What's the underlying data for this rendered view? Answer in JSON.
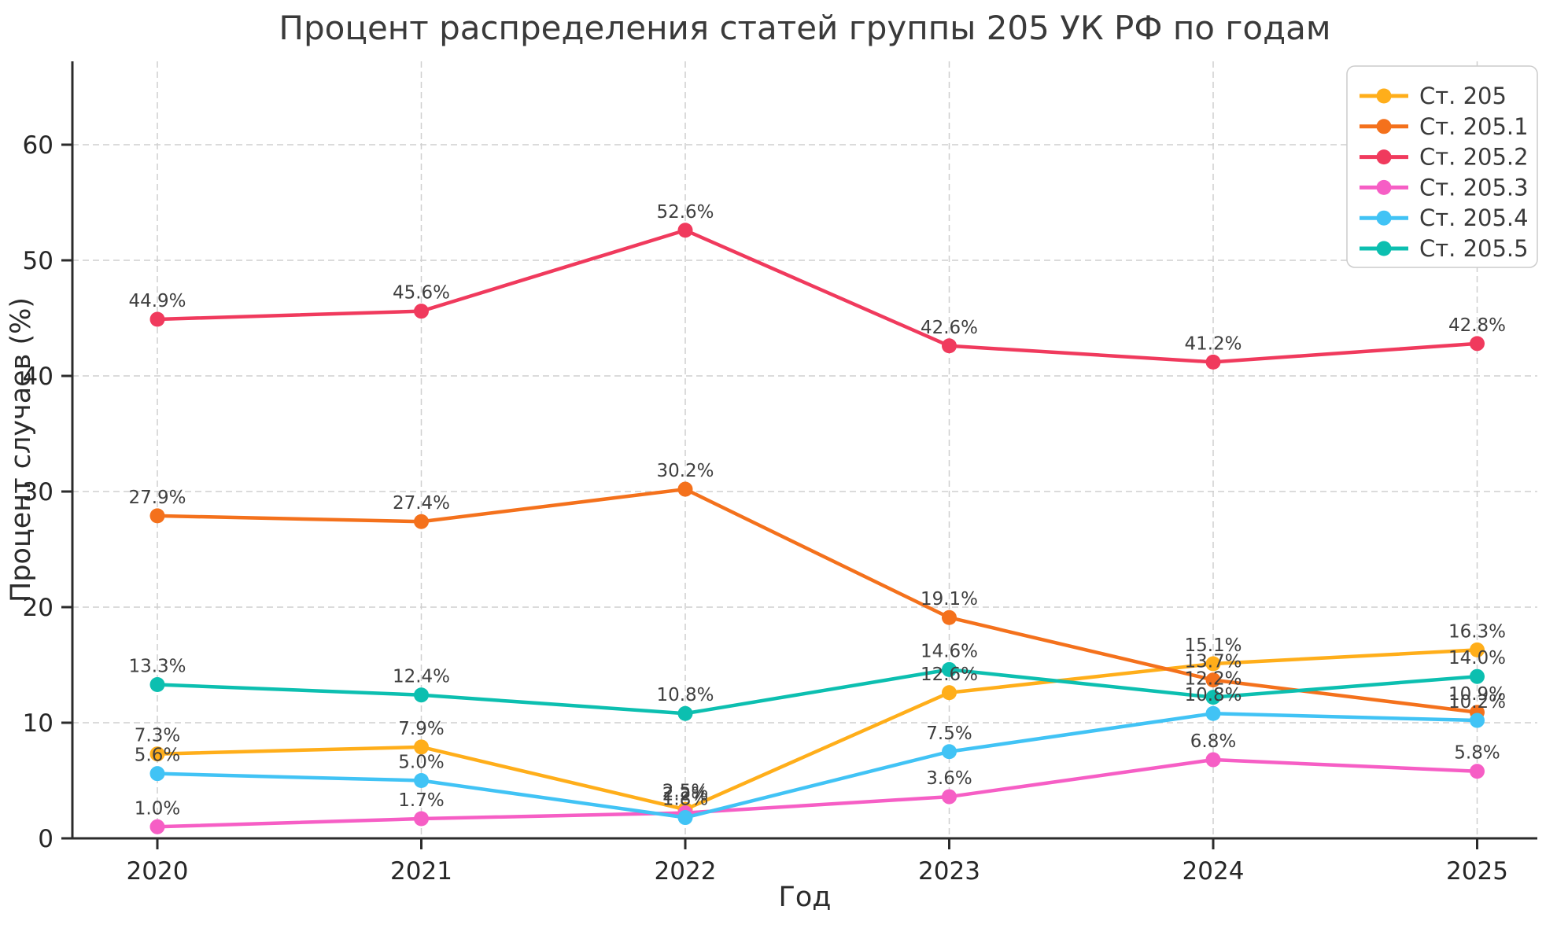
{
  "chart_data": {
    "type": "line",
    "title": "Процент распределения статей группы 205 УК РФ по годам",
    "xlabel": "Год",
    "ylabel": "Процент случаев (%)",
    "categories": [
      "2020",
      "2021",
      "2022",
      "2023",
      "2024",
      "2025"
    ],
    "yticks": [
      "0",
      "10",
      "20",
      "30",
      "40",
      "50",
      "60"
    ],
    "ylim": [
      0,
      67
    ],
    "grid": true,
    "legend_position": "upper right",
    "series": [
      {
        "name": "Ст. 205",
        "color": "#ffae1a",
        "values": [
          7.3,
          7.9,
          2.5,
          12.6,
          15.1,
          16.3
        ],
        "point_labels": [
          "7.3%",
          "7.9%",
          "2.5%",
          "12.6%",
          "15.1%",
          "16.3%"
        ]
      },
      {
        "name": "Ст. 205.1",
        "color": "#f4711c",
        "values": [
          27.9,
          27.4,
          30.2,
          19.1,
          13.7,
          10.9
        ],
        "point_labels": [
          "27.9%",
          "27.4%",
          "30.2%",
          "19.1%",
          "13.7%",
          "10.9%"
        ]
      },
      {
        "name": "Ст. 205.2",
        "color": "#f03a5d",
        "values": [
          44.9,
          45.6,
          52.6,
          42.6,
          41.2,
          42.8
        ],
        "point_labels": [
          "44.9%",
          "45.6%",
          "52.6%",
          "42.6%",
          "41.2%",
          "42.8%"
        ]
      },
      {
        "name": "Ст. 205.3",
        "color": "#f65ec5",
        "values": [
          1.0,
          1.7,
          2.2,
          3.6,
          6.8,
          5.8
        ],
        "point_labels": [
          "1.0%",
          "1.7%",
          "2.2%",
          "3.6%",
          "6.8%",
          "5.8%"
        ]
      },
      {
        "name": "Ст. 205.4",
        "color": "#41c3f5",
        "values": [
          5.6,
          5.0,
          1.8,
          7.5,
          10.8,
          10.2
        ],
        "point_labels": [
          "5.6%",
          "5.0%",
          "1.8%",
          "7.5%",
          "10.8%",
          "10.2%"
        ]
      },
      {
        "name": "Ст. 205.5",
        "color": "#0cbfb0",
        "values": [
          13.3,
          12.4,
          10.8,
          14.6,
          12.2,
          14.0
        ],
        "point_labels": [
          "13.3%",
          "12.4%",
          "10.8%",
          "14.6%",
          "12.2%",
          "14.0%"
        ]
      }
    ]
  }
}
